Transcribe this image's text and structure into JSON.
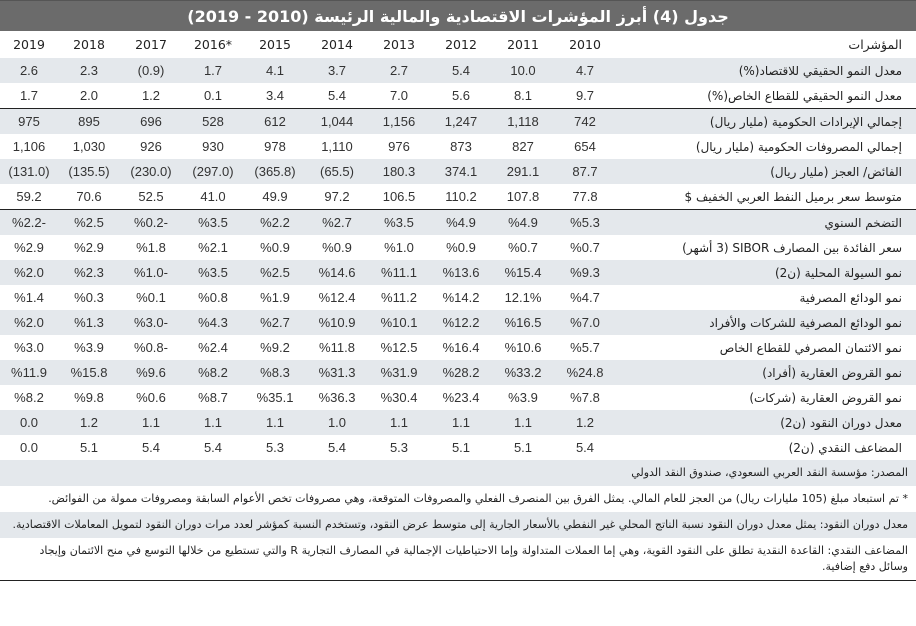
{
  "title": "جدول (4) أبرز المؤشرات الاقتصادية والمالية الرئيسة (2010 - 2019)",
  "header": {
    "indicator_label": "المؤشرات",
    "years": [
      "2010",
      "2011",
      "2012",
      "2013",
      "2014",
      "2015",
      "*2016",
      "2017",
      "2018",
      "2019"
    ]
  },
  "groups": [
    {
      "rows": [
        {
          "label": "معدل النمو الحقيقي للاقتصاد(%)",
          "values": [
            "4.7",
            "10.0",
            "5.4",
            "2.7",
            "3.7",
            "4.1",
            "1.7",
            "(0.9)",
            "2.3",
            "2.6"
          ]
        },
        {
          "label": "معدل النمو الحقيقي للقطاع الخاص(%)",
          "values": [
            "9.7",
            "8.1",
            "5.6",
            "7.0",
            "5.4",
            "3.4",
            "0.1",
            "1.2",
            "2.0",
            "1.7"
          ]
        }
      ]
    },
    {
      "rows": [
        {
          "label": "إجمالي الإيرادات الحكومية (مليار ريال)",
          "values": [
            "742",
            "1,118",
            "1,247",
            "1,156",
            "1,044",
            "612",
            "528",
            "696",
            "895",
            "975"
          ]
        },
        {
          "label": "إجمالي المصروفات الحكومية (مليار ريال)",
          "values": [
            "654",
            "827",
            "873",
            "976",
            "1,110",
            "978",
            "930",
            "926",
            "1,030",
            "1,106"
          ]
        },
        {
          "label": "الفائض/ العجز (مليار ريال)",
          "values": [
            "87.7",
            "291.1",
            "374.1",
            "180.3",
            "(65.5)",
            "(365.8)",
            "(297.0)",
            "(230.0)",
            "(135.5)",
            "(131.0)"
          ]
        },
        {
          "label": "متوسط سعر برميل النفط العربي الخفيف $",
          "values": [
            "77.8",
            "107.8",
            "110.2",
            "106.5",
            "97.2",
            "49.9",
            "41.0",
            "52.5",
            "70.6",
            "59.2"
          ]
        }
      ]
    },
    {
      "rows": [
        {
          "label": "التضخم السنوي",
          "values": [
            "%5.3",
            "%4.9",
            "%4.9",
            "%3.5",
            "%2.7",
            "%2.2",
            "%3.5",
            "%0.2-",
            "%2.5",
            "%2.2-"
          ]
        },
        {
          "label": "سعر الفائدة بين المصارف SIBOR (3 أشهر)",
          "values": [
            "%0.7",
            "%0.7",
            "%0.9",
            "%1.0",
            "%0.9",
            "%0.9",
            "%2.1",
            "%1.8",
            "%2.9",
            "%2.9"
          ]
        },
        {
          "label": "نمو السيولة المحلية (ن2)",
          "values": [
            "%9.3",
            "%15.4",
            "%13.6",
            "%11.1",
            "%14.6",
            "%2.5",
            "%3.5",
            "%1.0-",
            "%2.3",
            "%2.0"
          ]
        },
        {
          "label": "نمو الودائع المصرفية",
          "values": [
            "%4.7",
            "12.1%",
            "%14.2",
            "%11.2",
            "%12.4",
            "%1.9",
            "%0.8",
            "%0.1",
            "%0.3",
            "%1.4"
          ]
        },
        {
          "label": "نمو الودائع المصرفية للشركات والأفراد",
          "values": [
            "%7.0",
            "%16.5",
            "%12.2",
            "%10.1",
            "%10.9",
            "%2.7",
            "%4.3",
            "%3.0-",
            "%1.3",
            "%2.0"
          ]
        },
        {
          "label": "نمو الائتمان المصرفي للقطاع الخاص",
          "values": [
            "%5.7",
            "%10.6",
            "%16.4",
            "%12.5",
            "%11.8",
            "%9.2",
            "%2.4",
            "%0.8-",
            "%3.9",
            "%3.0"
          ]
        },
        {
          "label": "نمو القروض العقارية (أفراد)",
          "values": [
            "%24.8",
            "%33.2",
            "%28.2",
            "%31.9",
            "%31.3",
            "%8.3",
            "%8.2",
            "%9.6",
            "%15.8",
            "%11.9"
          ]
        },
        {
          "label": "نمو القروض العقارية (شركات)",
          "values": [
            "%7.8",
            "%3.9",
            "%23.4",
            "%30.4",
            "%36.3",
            "%35.1",
            "%8.7",
            "%0.6",
            "%9.8",
            "%8.2"
          ]
        },
        {
          "label": "معدل دوران النقود (ن2)",
          "values": [
            "1.2",
            "1.1",
            "1.1",
            "1.1",
            "1.0",
            "1.1",
            "1.1",
            "1.1",
            "1.2",
            "0.0"
          ]
        },
        {
          "label": "المضاعف النقدي (ن2)",
          "values": [
            "5.4",
            "5.1",
            "5.1",
            "5.3",
            "5.4",
            "5.3",
            "5.4",
            "5.4",
            "5.1",
            "0.0"
          ]
        }
      ]
    }
  ],
  "notes": {
    "source": "المصدر: مؤسسة النقد العربي السعودي، صندوق النقد الدولي",
    "footnote_2016": "* تم استبعاد مبلغ (105 مليارات ريال) من العجز للعام المالي. يمثل الفرق بين المنصرف الفعلي والمصروفات المتوقعة، وهي مصروفات تخص الأعوام السابقة ومصروفات ممولة من الفوائض.",
    "velocity_def": "معدل دوران النقود: يمثل معدل دوران النقود نسبة الناتج المحلي غير النفطي بالأسعار الجارية إلى متوسط عرض النقود، وتستخدم النسبة كمؤشر لعدد مرات دوران النقود لتمويل المعاملات الاقتصادية.",
    "multiplier_def": "المضاعف النقدي: القاعدة النقدية تطلق على النقود القوية، وهي إما العملات المتداولة وإما الاحتياطيات الإجمالية في المصارف التجارية R والتي تستطيع من خلالها التوسع في منح الائتمان وإيجاد وسائل دفع إضافية."
  },
  "colors": {
    "title_bg": "#6b6b6b",
    "shade_row": "#e4e8ec",
    "rule": "#222222"
  }
}
